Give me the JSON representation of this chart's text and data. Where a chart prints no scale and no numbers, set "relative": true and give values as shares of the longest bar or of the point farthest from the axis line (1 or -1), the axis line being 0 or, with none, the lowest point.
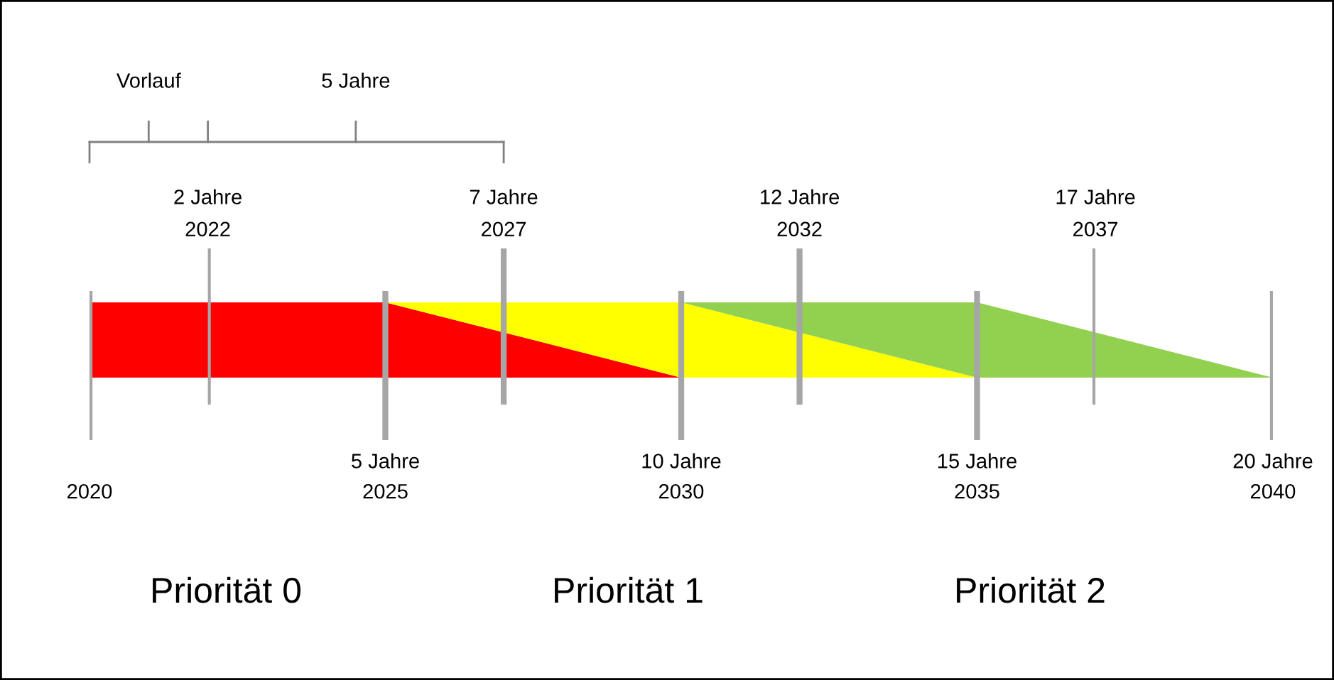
{
  "chart_data": {
    "type": "area",
    "stacked": true,
    "relative": true,
    "x": [
      2020,
      2025,
      2030,
      2035,
      2040
    ],
    "series": [
      {
        "color": "#ff0000",
        "values": [
          1,
          1,
          0,
          0,
          0
        ]
      },
      {
        "color": "#ffff00",
        "values": [
          null,
          0,
          1,
          0,
          null
        ]
      },
      {
        "color": "#92d050",
        "values": [
          null,
          null,
          0,
          1,
          0
        ]
      }
    ],
    "xlim": [
      2020,
      2040
    ],
    "xticks": [
      2020,
      2025,
      2030,
      2035,
      2040
    ],
    "x2lim": [
      2022,
      2037
    ],
    "x2ticks": [
      2022,
      2027,
      2032,
      2037
    ],
    "grid": "x",
    "annotations": [
      "Vorlauf",
      "5 Jahre",
      "2 Jahre",
      "5 Jahre",
      "7 Jahre",
      "10 Jahre",
      "12 Jahre",
      "15 Jahre",
      "17 Jahre",
      "20 Jahre",
      "Priorität 0",
      "Priorität 1",
      "Priorität 2"
    ],
    "legend": false
  }
}
